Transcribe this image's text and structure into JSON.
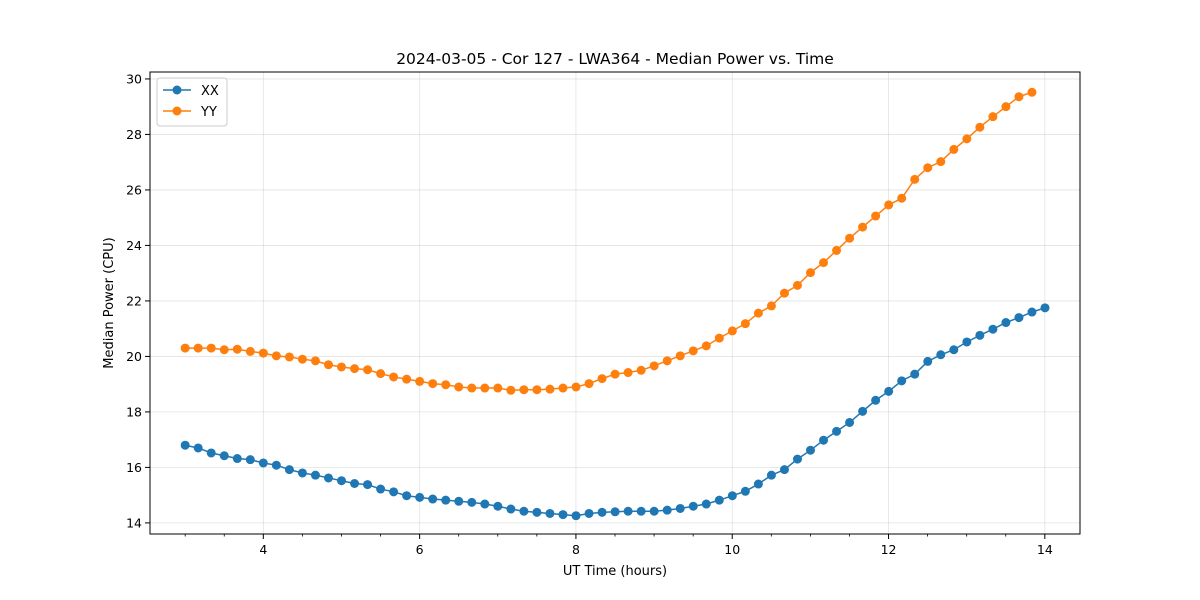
{
  "chart_data": {
    "type": "line",
    "title": "2024-03-05 - Cor 127 - LWA364 - Median Power vs. Time",
    "xlabel": "UT Time (hours)",
    "ylabel": "Median Power (CPU)",
    "xlim": [
      2.55,
      14.45
    ],
    "ylim": [
      13.6,
      30.25
    ],
    "xticks": [
      4,
      6,
      8,
      10,
      12,
      14
    ],
    "xminor_step": 0.5,
    "yticks": [
      14,
      16,
      18,
      20,
      22,
      24,
      26,
      28,
      30
    ],
    "grid": true,
    "legend_position": "upper-left",
    "x_start": 3.0,
    "x_step": 0.1667,
    "series": [
      {
        "name": "XX",
        "color": "#1f77b4",
        "values": [
          16.8,
          16.7,
          16.52,
          16.42,
          16.32,
          16.28,
          16.16,
          16.08,
          15.92,
          15.8,
          15.72,
          15.62,
          15.52,
          15.42,
          15.38,
          15.22,
          15.12,
          14.98,
          14.92,
          14.86,
          14.82,
          14.78,
          14.74,
          14.68,
          14.6,
          14.5,
          14.42,
          14.38,
          14.34,
          14.3,
          14.26,
          14.34,
          14.38,
          14.4,
          14.42,
          14.42,
          14.42,
          14.46,
          14.52,
          14.6,
          14.68,
          14.82,
          14.98,
          15.14,
          15.4,
          15.72,
          15.92,
          16.3,
          16.62,
          16.98,
          17.3,
          17.62,
          18.02,
          18.42,
          18.74,
          19.12,
          19.36,
          19.82,
          20.06,
          20.24,
          20.52,
          20.76,
          20.98,
          21.22,
          21.4,
          21.6,
          21.75
        ]
      },
      {
        "name": "YY",
        "color": "#ff7f0e",
        "values": [
          20.3,
          20.3,
          20.3,
          20.24,
          20.26,
          20.18,
          20.12,
          20.02,
          19.98,
          19.9,
          19.84,
          19.7,
          19.62,
          19.56,
          19.52,
          19.38,
          19.26,
          19.18,
          19.1,
          19.02,
          18.98,
          18.9,
          18.86,
          18.86,
          18.86,
          18.78,
          18.8,
          18.8,
          18.82,
          18.86,
          18.9,
          19.02,
          19.2,
          19.36,
          19.42,
          19.5,
          19.66,
          19.84,
          20.02,
          20.2,
          20.38,
          20.66,
          20.92,
          21.18,
          21.56,
          21.82,
          22.28,
          22.56,
          23.02,
          23.38,
          23.82,
          24.26,
          24.66,
          25.06,
          25.46,
          25.7,
          26.38,
          26.8,
          27.02,
          27.46,
          27.84,
          28.26,
          28.64,
          29.0,
          29.36,
          29.52
        ]
      }
    ]
  }
}
